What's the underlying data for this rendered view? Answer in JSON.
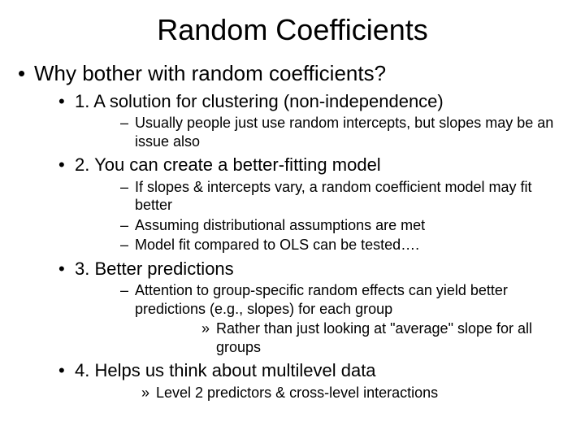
{
  "title": "Random Coefficients",
  "l1_0": "Why bother with random coefficients?",
  "l2_0": "1. A solution for clustering (non-independence)",
  "l3_0": "Usually people just use random intercepts, but slopes may be an issue also",
  "l2_1": "2.  You can create a better-fitting model",
  "l3_1": "If slopes & intercepts vary, a random coefficient model may fit better",
  "l3_2": "Assuming distributional assumptions are met",
  "l3_3": "Model fit compared to OLS can be tested….",
  "l2_2": "3.  Better predictions",
  "l3_4": "Attention to group-specific random effects can yield better predictions (e.g., slopes) for each group",
  "l4_0": "Rather than just looking at \"average\" slope for all groups",
  "l2_3": "4.  Helps us think about multilevel data",
  "l4_1": "Level 2 predictors & cross-level interactions"
}
